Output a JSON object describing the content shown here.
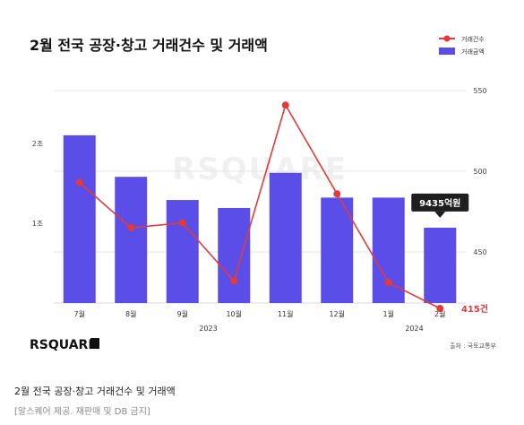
{
  "chart_data": {
    "type": "bar",
    "title": "2월 전국 공장·창고 거래건수 및 거래액",
    "categories": [
      "7월",
      "8월",
      "9월",
      "10월",
      "11월",
      "12월",
      "1월",
      "2월"
    ],
    "year_groups": [
      {
        "label": "2023",
        "from": 0,
        "to": 5
      },
      {
        "label": "2024",
        "from": 6,
        "to": 7
      }
    ],
    "series": [
      {
        "name": "거래금액",
        "kind": "bar",
        "axis": "left",
        "color": "#5b4de8",
        "values": [
          21000,
          15800,
          12900,
          11900,
          16300,
          13200,
          13200,
          9435
        ]
      },
      {
        "name": "거래건수",
        "kind": "line",
        "axis": "right",
        "color": "#e23b3b",
        "values": [
          493,
          465,
          468,
          432,
          541,
          486,
          431,
          415
        ]
      }
    ],
    "left_axis": {
      "ticks": [
        {
          "value": 10000,
          "label": "1조"
        },
        {
          "value": 20000,
          "label": "2조"
        }
      ],
      "ylim": [
        0,
        30000
      ]
    },
    "right_axis": {
      "ticks": [
        {
          "value": 450,
          "label": "450"
        },
        {
          "value": 500,
          "label": "500"
        },
        {
          "value": 550,
          "label": "550"
        }
      ],
      "ylim": [
        380,
        550
      ]
    },
    "callouts": {
      "bar_last": "9435억원",
      "line_last": "415건"
    },
    "brand": "RSQUARE",
    "watermark": "RSQUARE",
    "source": "출처 : 국토교통부",
    "colors": {
      "accent_bar": "#5b4de8",
      "accent_line": "#e23b3b",
      "grid": "#e4e4e4"
    },
    "legend_position": "top-right",
    "grid": true
  },
  "caption": {
    "title": "2월 전국 공장·창고 거래건수 및 거래액",
    "note": "[알스퀘어 제공. 재판매 및 DB 금지]"
  }
}
